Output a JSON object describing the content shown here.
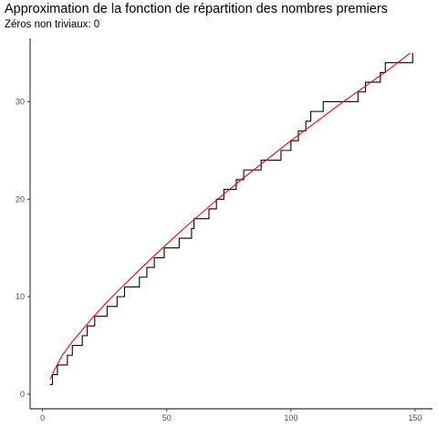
{
  "chart_data": {
    "type": "line",
    "title": "Approximation de la fonction de répartition des nombres premiers",
    "subtitle": "Zéros non triviaux: 0",
    "xlabel": "",
    "ylabel": "",
    "xlim": [
      -5,
      157
    ],
    "ylim": [
      -1.5,
      36.5
    ],
    "x_ticks": [
      0,
      50,
      100,
      150
    ],
    "y_ticks": [
      0,
      10,
      20,
      30
    ],
    "grid": false,
    "x_max_data": 149,
    "series": [
      {
        "kind": "step",
        "color": "#000000",
        "x_start": 3,
        "y_start": 1,
        "steps": [
          [
            4,
            2
          ],
          [
            6,
            3
          ],
          [
            10,
            4
          ],
          [
            12,
            5
          ],
          [
            16,
            6
          ],
          [
            18,
            7
          ],
          [
            21,
            8
          ],
          [
            26,
            9
          ],
          [
            30,
            10
          ],
          [
            33,
            11
          ],
          [
            39,
            12
          ],
          [
            42,
            13
          ],
          [
            45,
            14
          ],
          [
            49,
            15
          ],
          [
            55,
            16
          ],
          [
            60,
            17
          ],
          [
            61,
            18
          ],
          [
            67,
            19
          ],
          [
            70,
            20
          ],
          [
            73,
            21
          ],
          [
            78,
            22
          ],
          [
            81,
            23
          ],
          [
            88,
            24
          ],
          [
            96,
            25
          ],
          [
            100,
            26
          ],
          [
            103,
            27
          ],
          [
            106,
            28
          ],
          [
            108,
            29
          ],
          [
            113,
            30
          ],
          [
            127,
            31
          ],
          [
            130,
            32
          ],
          [
            136,
            33
          ],
          [
            138,
            34
          ],
          [
            149,
            35
          ]
        ]
      },
      {
        "kind": "curve",
        "color": "#ff0000",
        "x": [
          3,
          5,
          8,
          12,
          16,
          20,
          25,
          30,
          40,
          50,
          60,
          70,
          80,
          90,
          100,
          110,
          120,
          130,
          140,
          148
        ],
        "y": [
          1.5,
          2.6,
          4.0,
          5.4,
          6.6,
          7.8,
          9.2,
          10.5,
          13.0,
          15.4,
          17.7,
          19.9,
          22.0,
          24.0,
          26.0,
          27.9,
          29.8,
          31.6,
          33.4,
          35.0
        ]
      }
    ]
  }
}
